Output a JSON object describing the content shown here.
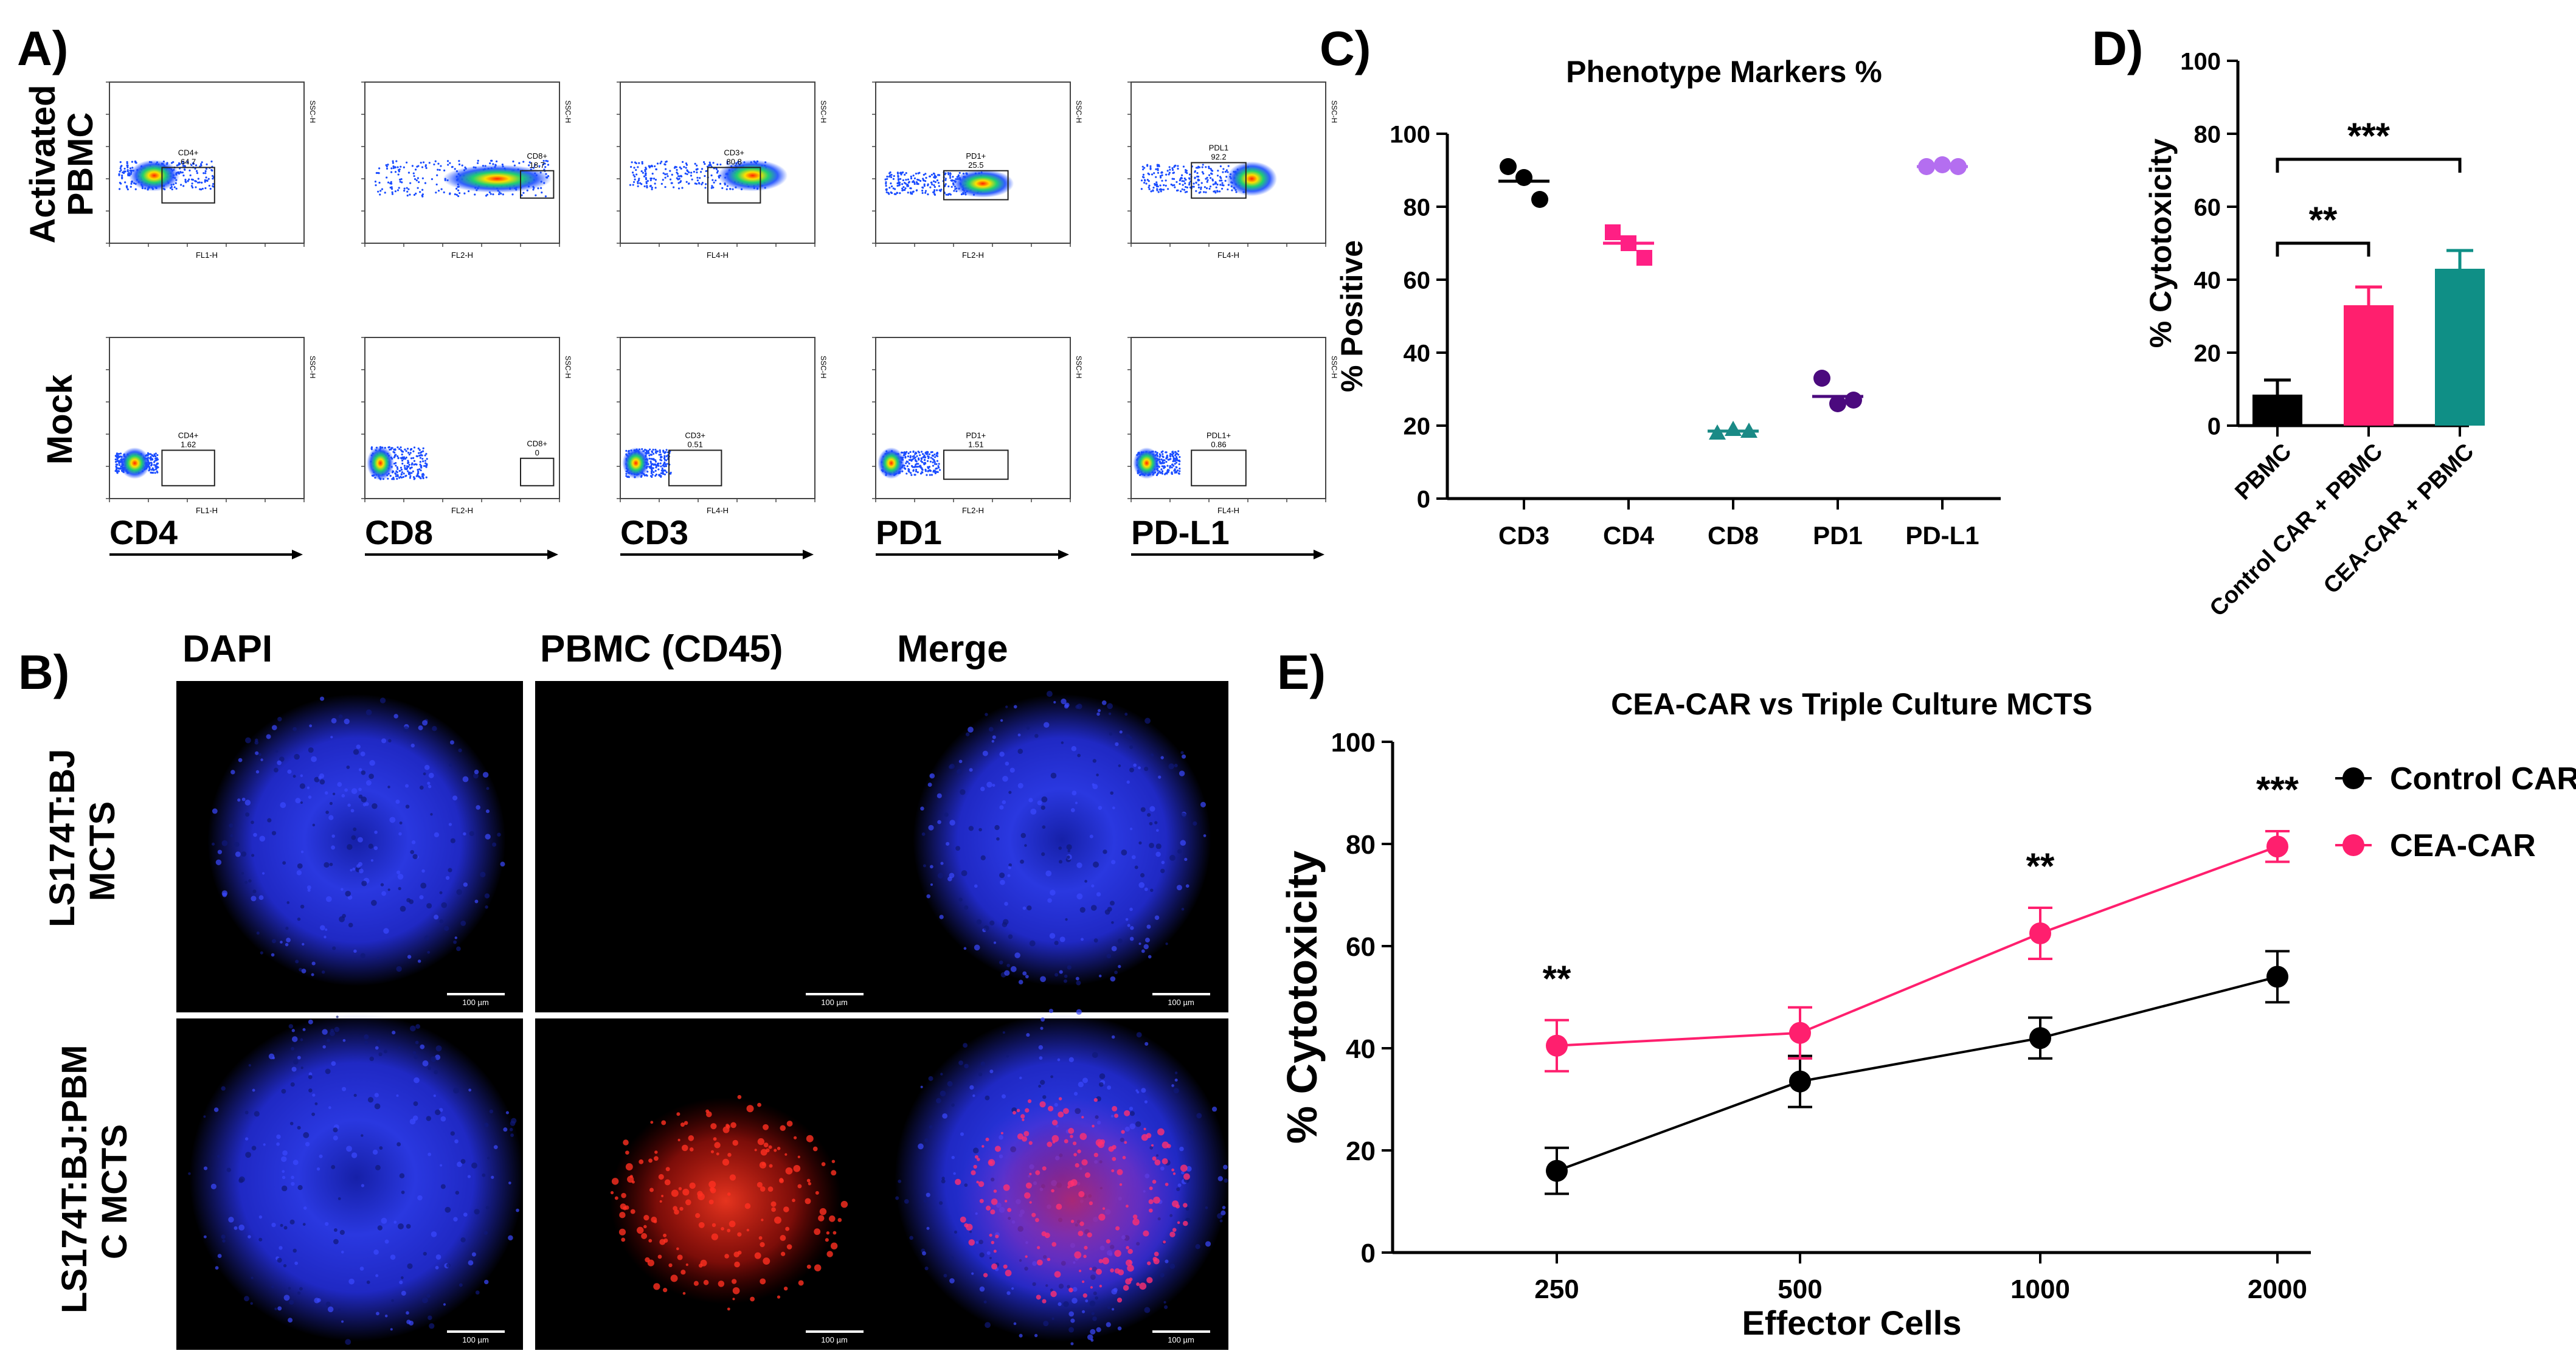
{
  "panels": {
    "a": "A)",
    "b": "B)",
    "c": "C)",
    "d": "D)",
    "e": "E)"
  },
  "flow": {
    "rows": [
      "Activated PBMC",
      "Mock"
    ],
    "markers": [
      "CD4",
      "CD8",
      "CD3",
      "PD1",
      "PD-L1"
    ],
    "gates": [
      [
        "CD4+",
        "64.7"
      ],
      [
        "CD8+",
        "18.7"
      ],
      [
        "CD3+",
        "80.8"
      ],
      [
        "PD1+",
        "25.5"
      ],
      [
        "PDL1",
        "92.2"
      ],
      [
        "CD4+",
        "1.62"
      ],
      [
        "CD8+",
        "0"
      ],
      [
        "CD3+",
        "0.51"
      ],
      [
        "PD1+",
        "1.51"
      ],
      [
        "PDL1+",
        "0.86"
      ]
    ],
    "xch": [
      "FL1-H",
      "FL2-H",
      "FL4-H",
      "FL2-H",
      "FL4-H"
    ],
    "yaxis": "SSC-H"
  },
  "micro": {
    "headers": [
      "DAPI",
      "PBMC (CD45)",
      "Merge"
    ],
    "rows": [
      "LS174T:BJ MCTS",
      "LS174T:BJ:PBMC MCTS"
    ],
    "rows_display": [
      [
        "LS174T:BJ",
        "MCTS"
      ],
      [
        "LS174T:BJ:PBM",
        "C MCTS"
      ]
    ],
    "scale": "100 µm",
    "colors": {
      "dapi": "#2530e6",
      "cd45": "#ff2a1e"
    }
  },
  "chart_data": [
    {
      "type": "scatter",
      "title": "Phenotype Markers %",
      "xlabel": "",
      "ylabel": "% Positive",
      "ylim": [
        0,
        100
      ],
      "ticks": [
        "0",
        "20",
        "40",
        "60",
        "80",
        "100"
      ],
      "categories": [
        "CD3",
        "CD4",
        "CD8",
        "PD1",
        "PD-L1"
      ],
      "points": [
        [
          91,
          88,
          82
        ],
        [
          73,
          70,
          66
        ],
        [
          18,
          19,
          18.5
        ],
        [
          33,
          26,
          27
        ],
        [
          91,
          91.5,
          91
        ]
      ],
      "means": [
        87,
        70,
        18.5,
        28,
        91
      ],
      "colors": [
        "#000000",
        "#ff1f84",
        "#1a8a86",
        "#4b0a7e",
        "#b46ef0"
      ],
      "shapes": [
        "circle",
        "square",
        "triangle",
        "circle",
        "circle"
      ]
    },
    {
      "type": "bar",
      "title": "",
      "xlabel": "",
      "ylabel": "% Cytotoxicity",
      "ylim": [
        0,
        100
      ],
      "ticks": [
        "0",
        "20",
        "40",
        "60",
        "80",
        "100"
      ],
      "categories": [
        "PBMC",
        "Control CAR + PBMC",
        "CEA-CAR + PBMC"
      ],
      "values": [
        8.5,
        33,
        43
      ],
      "errors": [
        4,
        5,
        5
      ],
      "colors": [
        "#000000",
        "#ff1f6e",
        "#0f8f86"
      ],
      "sig": [
        {
          "from": 0,
          "to": 1,
          "label": "**"
        },
        {
          "from": 0,
          "to": 2,
          "label": "***"
        }
      ]
    },
    {
      "type": "line",
      "title": "CEA-CAR vs Triple Culture MCTS",
      "xlabel": "Effector Cells",
      "ylabel": "% Cytotoxicity",
      "ylim": [
        0,
        100
      ],
      "ticks": [
        "0",
        "20",
        "40",
        "60",
        "80",
        "100"
      ],
      "categories": [
        "250",
        "500",
        "1000",
        "2000"
      ],
      "series": [
        {
          "name": "Control CAR",
          "values": [
            16,
            33.5,
            42,
            54
          ],
          "errors": [
            4.5,
            5,
            4,
            5
          ],
          "color": "#000000"
        },
        {
          "name": "CEA-CAR",
          "values": [
            40.5,
            43,
            62.5,
            79.5
          ],
          "errors": [
            5,
            5,
            5,
            3
          ],
          "color": "#ff1f6e"
        }
      ],
      "annotations": [
        "**",
        "",
        "**",
        "***"
      ]
    }
  ]
}
